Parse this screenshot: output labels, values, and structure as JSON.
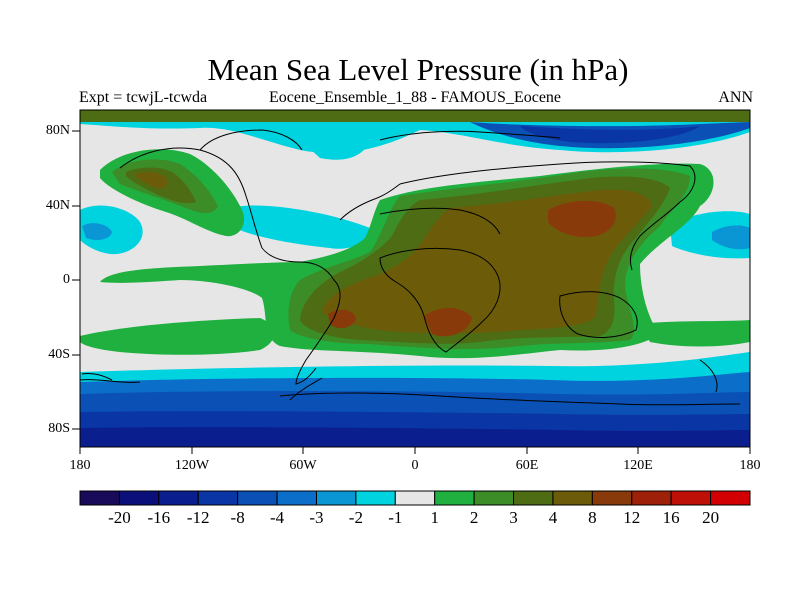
{
  "title": "Mean Sea Level Pressure (in hPa)",
  "subtitle_left": "Expt = tcwjL-tcwda",
  "subtitle_center": "Eocene_Ensemble_1_88 - FAMOUS_Eocene",
  "subtitle_right": "ANN",
  "axes": {
    "y_ticks": [
      "80N",
      "40N",
      "0",
      "40S",
      "80S"
    ],
    "x_ticks": [
      "180",
      "120W",
      "60W",
      "0",
      "60E",
      "120E",
      "180"
    ]
  },
  "colorbar": {
    "labels": [
      "-20",
      "-16",
      "-12",
      "-8",
      "-4",
      "-3",
      "-2",
      "-1",
      "1",
      "2",
      "3",
      "4",
      "8",
      "12",
      "16",
      "20"
    ],
    "colors": [
      "#1a0a5a",
      "#0a0f7a",
      "#0b1e8e",
      "#0a35a5",
      "#0a50b5",
      "#0b6ec8",
      "#0a96d4",
      "#00d3e0",
      "#e6e6e6",
      "#1fb040",
      "#3c8c28",
      "#4e6c14",
      "#6c5c0a",
      "#883a0a",
      "#9e2008",
      "#be1006",
      "#d20002"
    ]
  }
}
